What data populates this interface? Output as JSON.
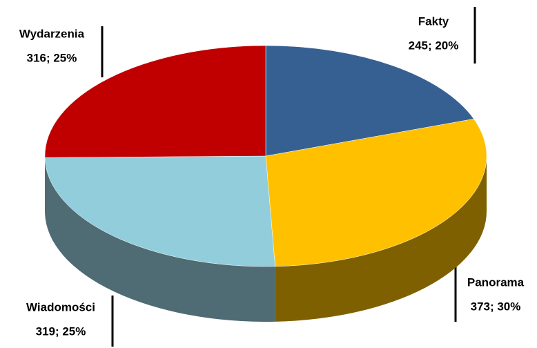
{
  "chart_data": {
    "type": "pie3d",
    "categories": [
      "Fakty",
      "Panorama",
      "Wiadomości",
      "Wydarzenia"
    ],
    "values": [
      245,
      373,
      319,
      316
    ],
    "value_labels": [
      "245; 20%",
      "373; 30%",
      "319; 25%",
      "316; 25%"
    ],
    "colors": [
      "#376092",
      "#ffc000",
      "#92cddc",
      "#c00000"
    ],
    "side_colors": [
      "#243f60",
      "#7f6000",
      "#4f6b73",
      "#7a0000"
    ]
  }
}
